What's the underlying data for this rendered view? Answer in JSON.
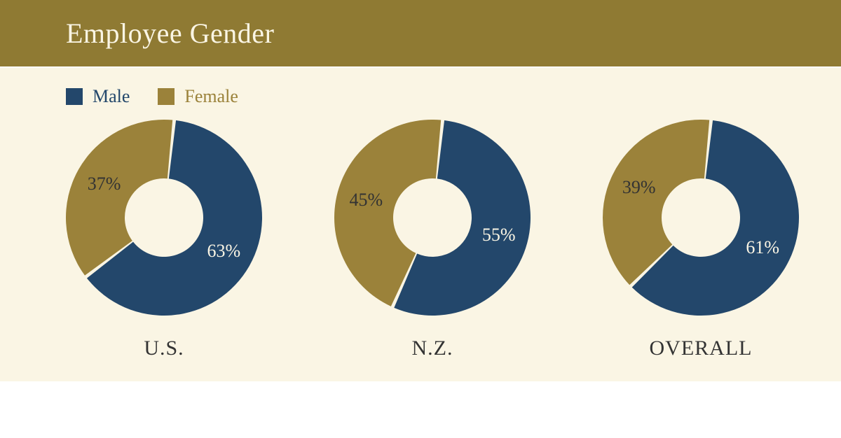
{
  "colors": {
    "header_bg": "#8f7a33",
    "header_text": "#faf5e4",
    "content_bg": "#faf5e4",
    "male": "#23476b",
    "female": "#9b823a",
    "gap": "#faf5e4",
    "label_male_text": "#faf5e4",
    "label_female_text": "#333333",
    "legend_male_text": "#23476b",
    "legend_female_text": "#9b823a"
  },
  "title": "Employee Gender",
  "legend": {
    "male": "Male",
    "female": "Female"
  },
  "donut": {
    "outer_r": 140,
    "inner_r": 56,
    "gap_deg": 2,
    "start_deg": 6
  },
  "typography": {
    "title_fontsize": 40,
    "legend_fontsize": 26,
    "slice_label_fontsize": 26,
    "chart_label_fontsize": 30
  },
  "charts": [
    {
      "label": "U.S.",
      "male": 63,
      "female": 37,
      "male_text": "63%",
      "female_text": "37%"
    },
    {
      "label": "N.Z.",
      "male": 55,
      "female": 45,
      "male_text": "55%",
      "female_text": "45%"
    },
    {
      "label": "OVERALL",
      "male": 61,
      "female": 39,
      "male_text": "61%",
      "female_text": "39%"
    }
  ]
}
